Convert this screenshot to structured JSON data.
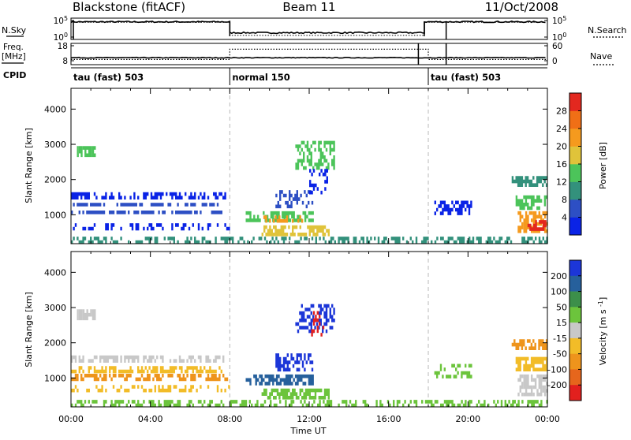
{
  "chart_data": {
    "type": "heatmap",
    "title": {
      "station": "Blackstone (fitACF)",
      "beam": "Beam 11",
      "date": "11/Oct/2008"
    },
    "x_axis": {
      "label": "Time UT",
      "range_hours": [
        0,
        24
      ],
      "ticks": [
        {
          "hour": 0,
          "label": "00:00"
        },
        {
          "hour": 4,
          "label": "04:00"
        },
        {
          "hour": 8,
          "label": "08:00"
        },
        {
          "hour": 12,
          "label": "12:00"
        },
        {
          "hour": 16,
          "label": "16:00"
        },
        {
          "hour": 20,
          "label": "20:00"
        },
        {
          "hour": 24,
          "label": "00:00"
        }
      ]
    },
    "top_panels": {
      "nsky_label": "N.Sky",
      "nsearch_label": "N.Search",
      "nsky_ticks": [
        {
          "v": 10,
          "label": "10^5"
        },
        {
          "v": 0,
          "label": "10^0"
        }
      ],
      "freq_label_1": "Freq.",
      "freq_label_2": "[MHz]",
      "freq_ticks": [
        {
          "v": 18,
          "label": "18"
        },
        {
          "v": 8,
          "label": "8"
        }
      ],
      "nave_label": "Nave",
      "nave_ticks": [
        {
          "v": 60,
          "label": "60"
        },
        {
          "v": 0,
          "label": "0"
        }
      ],
      "cpid_label": "CPID",
      "cpid_segments": [
        {
          "start": 0,
          "end": 8,
          "label": "tau (fast) 503"
        },
        {
          "start": 8,
          "end": 18,
          "label": "normal 150"
        },
        {
          "start": 18,
          "end": 24,
          "label": "tau (fast) 503"
        }
      ],
      "nsky_level": [
        {
          "start": 0,
          "end": 8,
          "value": 9.2
        },
        {
          "start": 8,
          "end": 17.8,
          "value": 2.6
        },
        {
          "start": 17.8,
          "end": 24,
          "value": 9.2
        }
      ],
      "freq_level_mhz": 10,
      "nave_level": [
        {
          "start": 0,
          "end": 8,
          "value": 5
        },
        {
          "start": 8,
          "end": 18,
          "value": 46
        },
        {
          "start": 18,
          "end": 24,
          "value": 5
        }
      ]
    },
    "power_panel": {
      "ylabel": "Slant Range [km]",
      "y_range_km": [
        180,
        4590
      ],
      "y_ticks": [
        1000,
        2000,
        3000,
        4000
      ],
      "colorbar_label": "Power [dB]",
      "colorbar_range": [
        0,
        32
      ],
      "colorbar_ticks": [
        4,
        8,
        12,
        16,
        20,
        24,
        28
      ],
      "colors": [
        "#0a23e6",
        "#2d4fc4",
        "#33917c",
        "#4cc45a",
        "#e0c33a",
        "#f59a1e",
        "#f06f16",
        "#e3281f"
      ],
      "regions": [
        {
          "t0": 0.3,
          "t1": 1.3,
          "r0": 2680,
          "r1": 2950,
          "level": 3,
          "density": 0.7
        },
        {
          "t0": 0.0,
          "t1": 7.8,
          "r0": 1480,
          "r1": 1640,
          "level": 0,
          "density": 0.55
        },
        {
          "t0": 0.0,
          "t1": 7.6,
          "r0": 1230,
          "r1": 1340,
          "level": 1,
          "density": 0.65
        },
        {
          "t0": 0.0,
          "t1": 7.9,
          "r0": 980,
          "r1": 1120,
          "level": 1,
          "density": 0.6
        },
        {
          "t0": 0.0,
          "t1": 8.0,
          "r0": 560,
          "r1": 760,
          "level": 0,
          "density": 0.35
        },
        {
          "t0": 0.0,
          "t1": 24.0,
          "r0": 180,
          "r1": 380,
          "level": 2,
          "density": 0.45
        },
        {
          "t0": 8.8,
          "t1": 12.2,
          "r0": 750,
          "r1": 1100,
          "level": 3,
          "density": 0.65
        },
        {
          "t0": 9.5,
          "t1": 11.8,
          "r0": 820,
          "r1": 980,
          "level": 5,
          "density": 0.5
        },
        {
          "t0": 9.6,
          "t1": 13.0,
          "r0": 400,
          "r1": 700,
          "level": 4,
          "density": 0.7
        },
        {
          "t0": 10.3,
          "t1": 12.2,
          "r0": 1200,
          "r1": 1700,
          "level": 1,
          "density": 0.45
        },
        {
          "t0": 11.3,
          "t1": 13.3,
          "r0": 2300,
          "r1": 3100,
          "level": 3,
          "density": 0.45
        },
        {
          "t0": 12.0,
          "t1": 13.0,
          "r0": 1600,
          "r1": 2300,
          "level": 0,
          "density": 0.35
        },
        {
          "t0": 18.3,
          "t1": 20.2,
          "r0": 1000,
          "r1": 1400,
          "level": 0,
          "density": 0.55
        },
        {
          "t0": 22.2,
          "t1": 24.0,
          "r0": 1800,
          "r1": 2100,
          "level": 2,
          "density": 0.6
        },
        {
          "t0": 22.4,
          "t1": 24.0,
          "r0": 1150,
          "r1": 1550,
          "level": 3,
          "density": 0.65
        },
        {
          "t0": 22.5,
          "t1": 24.0,
          "r0": 500,
          "r1": 1100,
          "level": 5,
          "density": 0.75
        },
        {
          "t0": 23.0,
          "t1": 24.0,
          "r0": 500,
          "r1": 850,
          "level": 7,
          "density": 0.7
        }
      ]
    },
    "velocity_panel": {
      "ylabel": "Slant Range [km]",
      "y_range_km": [
        180,
        4590
      ],
      "y_ticks": [
        1000,
        2000,
        3000,
        4000
      ],
      "colorbar_label": "Velocity [m s^-1]",
      "colorbar_ticks": [
        "200",
        "100",
        "50",
        "15",
        "-15",
        "-50",
        "-100",
        "-200"
      ],
      "colors": [
        "#1c36d8",
        "#26609c",
        "#3c8f4a",
        "#6cc43c",
        "#c8c8c8",
        "#f2bc28",
        "#ee941c",
        "#e6661c",
        "#e2201e"
      ],
      "regions": [
        {
          "t0": 0.3,
          "t1": 1.3,
          "r0": 2680,
          "r1": 2950,
          "level": 4,
          "density": 0.7
        },
        {
          "t0": 0.0,
          "t1": 7.8,
          "r0": 1480,
          "r1": 1640,
          "level": 4,
          "density": 0.5
        },
        {
          "t0": 0.0,
          "t1": 7.6,
          "r0": 1150,
          "r1": 1340,
          "level": 5,
          "density": 0.6
        },
        {
          "t0": 0.0,
          "t1": 7.9,
          "r0": 950,
          "r1": 1120,
          "level": 6,
          "density": 0.5
        },
        {
          "t0": 0.0,
          "t1": 8.0,
          "r0": 560,
          "r1": 800,
          "level": 5,
          "density": 0.35
        },
        {
          "t0": 0.0,
          "t1": 24.0,
          "r0": 180,
          "r1": 380,
          "level": 3,
          "density": 0.45
        },
        {
          "t0": 8.8,
          "t1": 12.2,
          "r0": 750,
          "r1": 1100,
          "level": 1,
          "density": 0.65
        },
        {
          "t0": 9.6,
          "t1": 13.0,
          "r0": 400,
          "r1": 700,
          "level": 3,
          "density": 0.7
        },
        {
          "t0": 10.3,
          "t1": 12.2,
          "r0": 1200,
          "r1": 1700,
          "level": 0,
          "density": 0.45
        },
        {
          "t0": 11.3,
          "t1": 13.3,
          "r0": 2300,
          "r1": 3100,
          "level": 0,
          "density": 0.4
        },
        {
          "t0": 12.0,
          "t1": 12.8,
          "r0": 2200,
          "r1": 2900,
          "level": 8,
          "density": 0.25
        },
        {
          "t0": 18.3,
          "t1": 20.2,
          "r0": 1000,
          "r1": 1400,
          "level": 3,
          "density": 0.5
        },
        {
          "t0": 22.2,
          "t1": 24.0,
          "r0": 1800,
          "r1": 2100,
          "level": 6,
          "density": 0.65
        },
        {
          "t0": 22.4,
          "t1": 24.0,
          "r0": 1150,
          "r1": 1600,
          "level": 5,
          "density": 0.65
        },
        {
          "t0": 22.5,
          "t1": 24.0,
          "r0": 500,
          "r1": 1100,
          "level": 4,
          "density": 0.7
        }
      ]
    }
  }
}
